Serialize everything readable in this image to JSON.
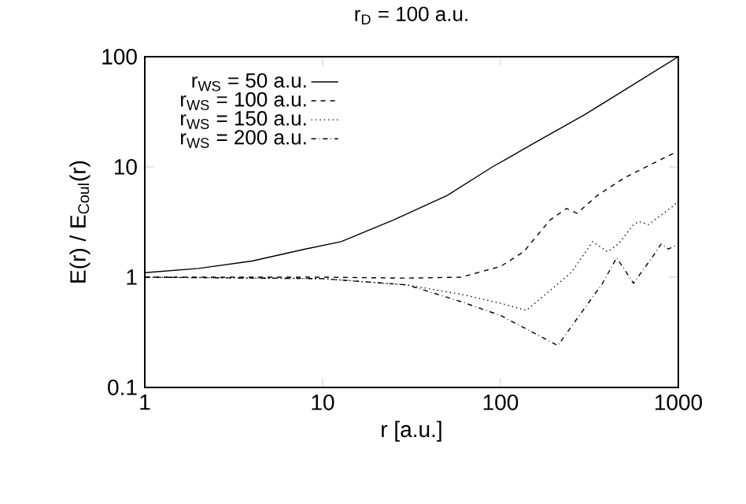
{
  "chart_data": {
    "type": "line",
    "title": "r$_{D}$ = 100 a.u.",
    "xlabel": "r [a.u.]",
    "ylabel": "E(r) / E$_{Coul}$(r)",
    "log": "xy",
    "xlim": [
      1,
      1000
    ],
    "ylim": [
      0.1,
      100
    ],
    "xticks": [
      1,
      10,
      100,
      1000
    ],
    "yticks": [
      0.1,
      1,
      10,
      100
    ],
    "legend": "top left",
    "series": [
      {
        "name": "r$_{WS}$ = 50 a.u.",
        "color": "#000000",
        "line_style": "solid",
        "x": [
          1,
          2,
          4,
          8,
          12.7,
          25,
          50,
          90,
          110,
          150,
          300,
          500,
          1000
        ],
        "values": [
          1.1,
          1.2,
          1.4,
          1.8,
          2.1,
          3.3,
          5.5,
          10,
          12,
          16,
          30,
          50,
          100
        ]
      },
      {
        "name": "r$_{WS}$ = 100 a.u.",
        "color": "#000000",
        "line_style": "dashed",
        "x": [
          1,
          10,
          30,
          60,
          100,
          135,
          190,
          235,
          270,
          350,
          500,
          700,
          1000
        ],
        "values": [
          1,
          1,
          0.98,
          1,
          1.25,
          1.7,
          3.3,
          4.2,
          3.8,
          5.5,
          8,
          10.5,
          14
        ]
      },
      {
        "name": "r$_{WS}$ = 150 a.u.",
        "color": "#000000",
        "line_style": "dotted",
        "x": [
          1,
          10,
          30,
          60,
          100,
          140,
          250,
          330,
          400,
          460,
          560,
          600,
          680,
          950,
          1000
        ],
        "values": [
          1,
          0.97,
          0.85,
          0.7,
          0.58,
          0.5,
          1.1,
          2.1,
          1.7,
          2.0,
          3.0,
          3.2,
          3.0,
          4.5,
          5
        ]
      },
      {
        "name": "r$_{WS}$ = 200 a.u.",
        "color": "#000000",
        "line_style": "dashdot",
        "x": [
          1,
          10,
          30,
          60,
          100,
          210,
          375,
          450,
          560,
          750,
          800,
          880,
          1000
        ],
        "values": [
          1,
          0.97,
          0.85,
          0.6,
          0.45,
          0.24,
          0.88,
          1.5,
          0.88,
          1.7,
          2.0,
          1.8,
          2.0
        ]
      }
    ]
  }
}
